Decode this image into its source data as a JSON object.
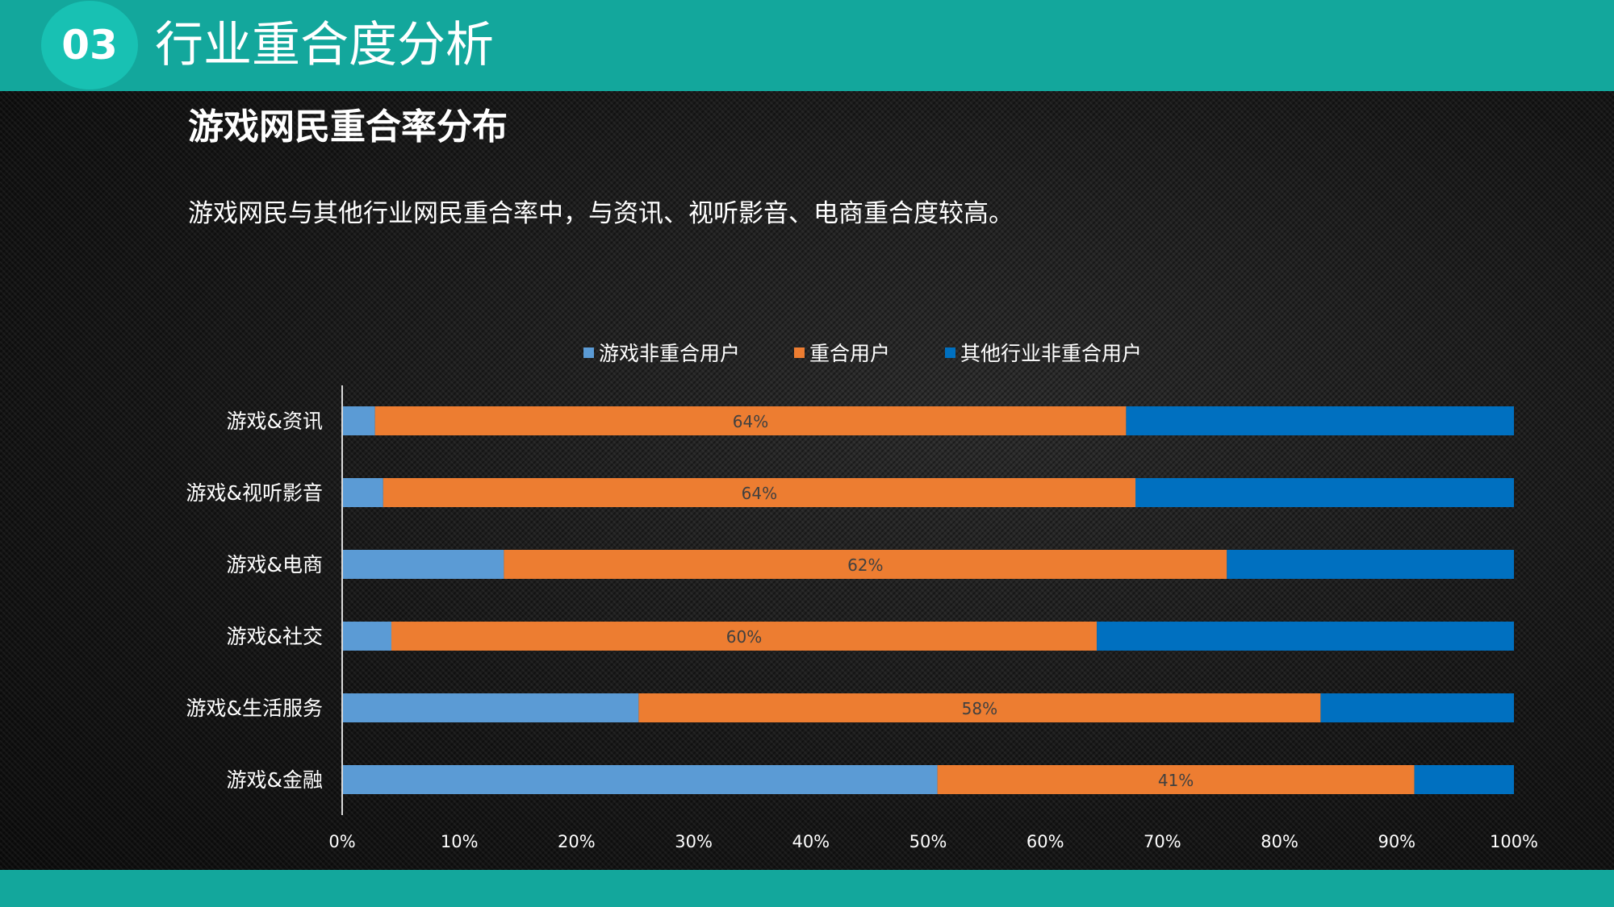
{
  "header": {
    "section_number": "03",
    "section_title": "行业重合度分析"
  },
  "slide": {
    "heading": "游戏网民重合率分布",
    "subtitle": "游戏网民与其他行业网民重合率中，与资讯、视听影音、电商重合度较高。"
  },
  "colors": {
    "teal_bar": "#13a79c",
    "teal_circle": "#18c1b3",
    "series_game_only": "#5b9bd5",
    "series_overlap": "#ed7d31",
    "series_other_only": "#0070c0"
  },
  "chart_data": {
    "type": "bar",
    "orientation": "horizontal",
    "stacked": "percent",
    "categories": [
      "游戏&资讯",
      "游戏&视听影音",
      "游戏&电商",
      "游戏&社交",
      "游戏&生活服务",
      "游戏&金融"
    ],
    "series": [
      {
        "name": "游戏非重合用户",
        "color": "#5b9bd5",
        "values": [
          2.8,
          3.5,
          13.8,
          4.2,
          25.3,
          50.8
        ]
      },
      {
        "name": "重合用户",
        "color": "#ed7d31",
        "values": [
          64.1,
          64.2,
          61.7,
          60.2,
          58.2,
          40.7
        ]
      },
      {
        "name": "其他行业非重合用户",
        "color": "#0070c0",
        "values": [
          33.1,
          32.3,
          24.5,
          35.6,
          16.5,
          8.5
        ]
      }
    ],
    "data_labels": [
      "64%",
      "64%",
      "62%",
      "60%",
      "58%",
      "41%"
    ],
    "xlim": [
      0,
      100
    ],
    "x_ticks": [
      "0%",
      "10%",
      "20%",
      "30%",
      "40%",
      "50%",
      "60%",
      "70%",
      "80%",
      "90%",
      "100%"
    ],
    "legend_position": "top",
    "grid": false
  }
}
